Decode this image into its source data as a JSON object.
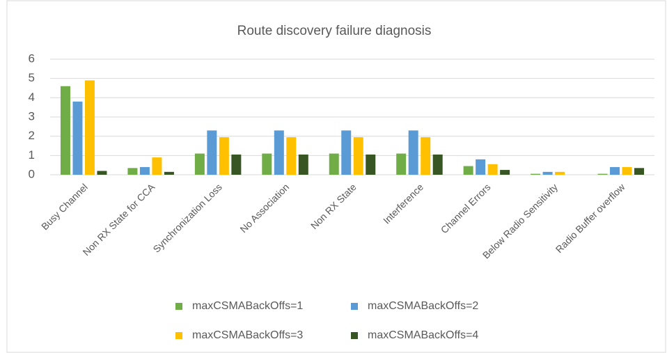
{
  "chart_data": {
    "type": "bar",
    "title": "Route discovery failure diagnosis",
    "categories": [
      "Busy Channel",
      "Non RX State for CCA",
      "Synchronization Loss",
      "No Association",
      "Non RX State",
      "Interference",
      "Channel Errors",
      "Below  Radio Sensitivity",
      "Radio Buffer overflow"
    ],
    "series": [
      {
        "name": "maxCSMABackOffs=1",
        "color": "#70ad47",
        "values": [
          4.6,
          0.35,
          1.1,
          1.1,
          1.1,
          1.1,
          0.45,
          0.05,
          0.05
        ]
      },
      {
        "name": "maxCSMABackOffs=2",
        "color": "#5b9bd5",
        "values": [
          3.8,
          0.4,
          2.3,
          2.3,
          2.3,
          2.3,
          0.8,
          0.15,
          0.4
        ]
      },
      {
        "name": "maxCSMABackOffs=3",
        "color": "#ffc000",
        "values": [
          4.9,
          0.9,
          1.95,
          1.95,
          1.95,
          1.95,
          0.55,
          0.15,
          0.4
        ]
      },
      {
        "name": "maxCSMABackOffs=4",
        "color": "#375623",
        "values": [
          0.2,
          0.15,
          1.05,
          1.05,
          1.05,
          1.05,
          0.25,
          0,
          0.35
        ]
      }
    ],
    "ylim": [
      0,
      6
    ],
    "yticks": [
      0,
      1,
      2,
      3,
      4,
      5,
      6
    ],
    "grid": true,
    "legend": "bottom"
  }
}
